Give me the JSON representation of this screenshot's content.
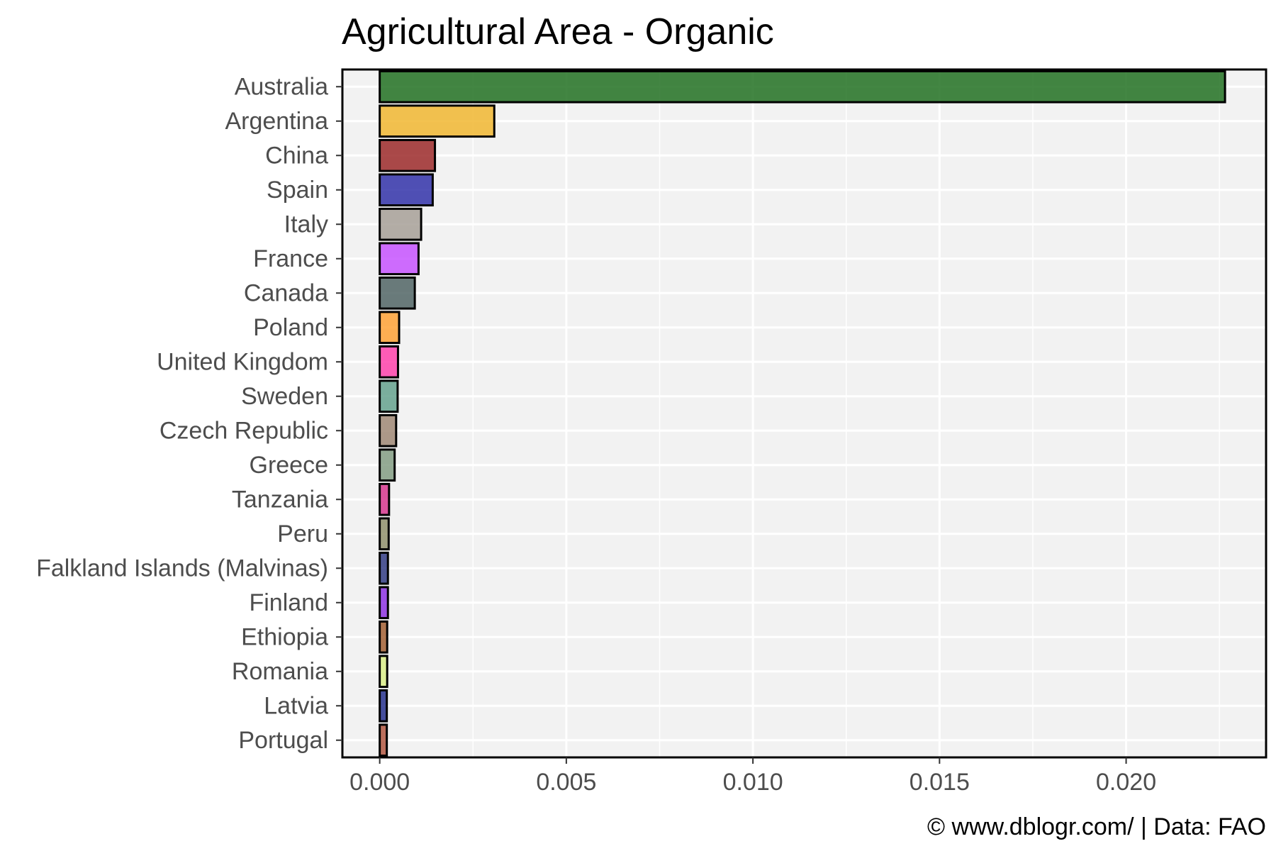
{
  "chart_data": {
    "type": "bar",
    "orientation": "horizontal",
    "title": "Agricultural Area - Organic",
    "caption": "© www.dblogr.com/  |  Data: FAO",
    "xlabel": "",
    "ylabel": "",
    "xlim": [
      -0.001,
      0.02375
    ],
    "xticks": [
      0.0,
      0.005,
      0.01,
      0.015,
      0.02
    ],
    "xtick_labels": [
      "0.000",
      "0.005",
      "0.010",
      "0.015",
      "0.020"
    ],
    "grid": true,
    "legend": "none",
    "categories": [
      "Australia",
      "Argentina",
      "China",
      "Spain",
      "Italy",
      "France",
      "Canada",
      "Poland",
      "United Kingdom",
      "Sweden",
      "Czech Republic",
      "Greece",
      "Tanzania",
      "Peru",
      "Falkland Islands (Malvinas)",
      "Finland",
      "Ethiopia",
      "Romania",
      "Latvia",
      "Portugal"
    ],
    "values": [
      0.02265,
      0.00307,
      0.00148,
      0.00142,
      0.00111,
      0.00104,
      0.00094,
      0.00052,
      0.00049,
      0.00048,
      0.00044,
      0.0004,
      0.00025,
      0.00024,
      0.00022,
      0.00022,
      0.0002,
      0.0002,
      0.00019,
      0.00019
    ],
    "colors": [
      "#1a6b1a",
      "#f0b429",
      "#992222",
      "#2b2ba6",
      "#a39c94",
      "#c44dff",
      "#4a5f5f",
      "#ff9f2e",
      "#ff3aa8",
      "#5f9f8a",
      "#9c8470",
      "#7f9a7f",
      "#d62f8a",
      "#8c8c66",
      "#2b3580",
      "#8a2be2",
      "#a05a2c",
      "#d9ee84",
      "#1e2a8a",
      "#b0523a"
    ],
    "colors_meta": {
      "panel_background": "#f2f2f2",
      "grid": "#ffffff",
      "bar_outline": "#000000"
    }
  }
}
